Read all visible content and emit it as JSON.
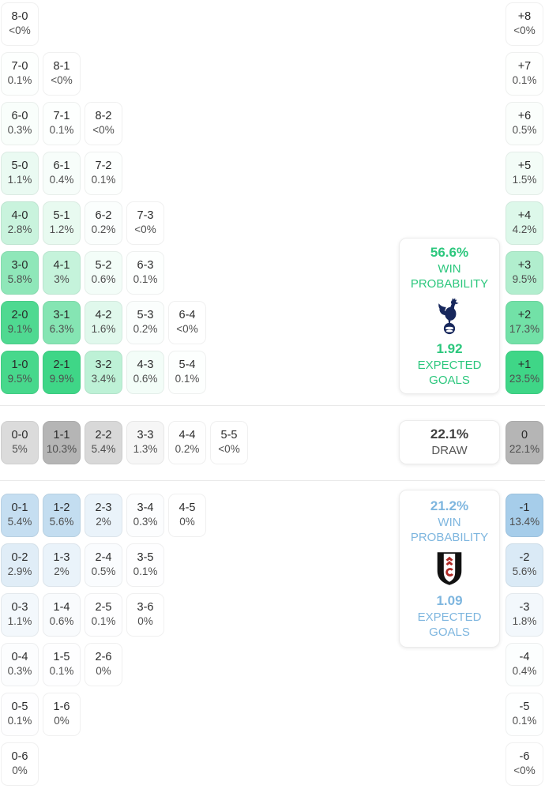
{
  "chart_data": {
    "type": "heatmap",
    "title": "Match score probability matrix with goal-difference distribution",
    "legend_position": "none",
    "home_score_grid": {
      "base_color": "#3fd687",
      "rows": [
        [
          {
            "score": "8-0",
            "pct": "<0%",
            "value": 0.02
          }
        ],
        [
          {
            "score": "7-0",
            "pct": "0.1%",
            "value": 0.1
          },
          {
            "score": "8-1",
            "pct": "<0%",
            "value": 0.02
          }
        ],
        [
          {
            "score": "6-0",
            "pct": "0.3%",
            "value": 0.3
          },
          {
            "score": "7-1",
            "pct": "0.1%",
            "value": 0.1
          },
          {
            "score": "8-2",
            "pct": "<0%",
            "value": 0.02
          }
        ],
        [
          {
            "score": "5-0",
            "pct": "1.1%",
            "value": 1.1
          },
          {
            "score": "6-1",
            "pct": "0.4%",
            "value": 0.4
          },
          {
            "score": "7-2",
            "pct": "0.1%",
            "value": 0.1
          }
        ],
        [
          {
            "score": "4-0",
            "pct": "2.8%",
            "value": 2.8
          },
          {
            "score": "5-1",
            "pct": "1.2%",
            "value": 1.2
          },
          {
            "score": "6-2",
            "pct": "0.2%",
            "value": 0.2
          },
          {
            "score": "7-3",
            "pct": "<0%",
            "value": 0.02
          }
        ],
        [
          {
            "score": "3-0",
            "pct": "5.8%",
            "value": 5.8
          },
          {
            "score": "4-1",
            "pct": "3%",
            "value": 3
          },
          {
            "score": "5-2",
            "pct": "0.6%",
            "value": 0.6
          },
          {
            "score": "6-3",
            "pct": "0.1%",
            "value": 0.1
          }
        ],
        [
          {
            "score": "2-0",
            "pct": "9.1%",
            "value": 9.1
          },
          {
            "score": "3-1",
            "pct": "6.3%",
            "value": 6.3
          },
          {
            "score": "4-2",
            "pct": "1.6%",
            "value": 1.6
          },
          {
            "score": "5-3",
            "pct": "0.2%",
            "value": 0.2
          },
          {
            "score": "6-4",
            "pct": "<0%",
            "value": 0.02
          }
        ],
        [
          {
            "score": "1-0",
            "pct": "9.5%",
            "value": 9.5
          },
          {
            "score": "2-1",
            "pct": "9.9%",
            "value": 9.9
          },
          {
            "score": "3-2",
            "pct": "3.4%",
            "value": 3.4
          },
          {
            "score": "4-3",
            "pct": "0.6%",
            "value": 0.6
          },
          {
            "score": "5-4",
            "pct": "0.1%",
            "value": 0.1
          }
        ]
      ]
    },
    "draw_score_grid": {
      "base_color": "#b5b5b5",
      "rows": [
        [
          {
            "score": "0-0",
            "pct": "5%",
            "value": 5
          },
          {
            "score": "1-1",
            "pct": "10.3%",
            "value": 10.3
          },
          {
            "score": "2-2",
            "pct": "5.4%",
            "value": 5.4
          },
          {
            "score": "3-3",
            "pct": "1.3%",
            "value": 1.3
          },
          {
            "score": "4-4",
            "pct": "0.2%",
            "value": 0.2
          },
          {
            "score": "5-5",
            "pct": "<0%",
            "value": 0.02
          }
        ]
      ]
    },
    "away_score_grid": {
      "base_color": "#c3ddf0",
      "rows": [
        [
          {
            "score": "0-1",
            "pct": "5.4%",
            "value": 5.4
          },
          {
            "score": "1-2",
            "pct": "5.6%",
            "value": 5.6
          },
          {
            "score": "2-3",
            "pct": "2%",
            "value": 2
          },
          {
            "score": "3-4",
            "pct": "0.3%",
            "value": 0.3
          },
          {
            "score": "4-5",
            "pct": "0%",
            "value": 0.01
          }
        ],
        [
          {
            "score": "0-2",
            "pct": "2.9%",
            "value": 2.9
          },
          {
            "score": "1-3",
            "pct": "2%",
            "value": 2
          },
          {
            "score": "2-4",
            "pct": "0.5%",
            "value": 0.5
          },
          {
            "score": "3-5",
            "pct": "0.1%",
            "value": 0.1
          }
        ],
        [
          {
            "score": "0-3",
            "pct": "1.1%",
            "value": 1.1
          },
          {
            "score": "1-4",
            "pct": "0.6%",
            "value": 0.6
          },
          {
            "score": "2-5",
            "pct": "0.1%",
            "value": 0.1
          },
          {
            "score": "3-6",
            "pct": "0%",
            "value": 0.01
          }
        ],
        [
          {
            "score": "0-4",
            "pct": "0.3%",
            "value": 0.3
          },
          {
            "score": "1-5",
            "pct": "0.1%",
            "value": 0.1
          },
          {
            "score": "2-6",
            "pct": "0%",
            "value": 0.01
          }
        ],
        [
          {
            "score": "0-5",
            "pct": "0.1%",
            "value": 0.1
          },
          {
            "score": "1-6",
            "pct": "0%",
            "value": 0.01
          }
        ],
        [
          {
            "score": "0-6",
            "pct": "0%",
            "value": 0.01
          }
        ]
      ]
    },
    "goal_difference_column": {
      "positive": {
        "base_color": "#3fd687",
        "cells": [
          {
            "score": "+8",
            "pct": "<0%",
            "value": 0.02
          },
          {
            "score": "+7",
            "pct": "0.1%",
            "value": 0.1
          },
          {
            "score": "+6",
            "pct": "0.5%",
            "value": 0.5
          },
          {
            "score": "+5",
            "pct": "1.5%",
            "value": 1.5
          },
          {
            "score": "+4",
            "pct": "4.2%",
            "value": 4.2
          },
          {
            "score": "+3",
            "pct": "9.5%",
            "value": 9.5
          },
          {
            "score": "+2",
            "pct": "17.3%",
            "value": 17.3
          },
          {
            "score": "+1",
            "pct": "23.5%",
            "value": 23.5
          }
        ]
      },
      "zero": {
        "base_color": "#b5b5b5",
        "cells": [
          {
            "score": "0",
            "pct": "22.1%",
            "value": 22.1
          }
        ]
      },
      "negative": {
        "base_color": "#a6cdea",
        "cells": [
          {
            "score": "-1",
            "pct": "13.4%",
            "value": 13.4
          },
          {
            "score": "-2",
            "pct": "5.6%",
            "value": 5.6
          },
          {
            "score": "-3",
            "pct": "1.8%",
            "value": 1.8
          },
          {
            "score": "-4",
            "pct": "0.4%",
            "value": 0.4
          },
          {
            "score": "-5",
            "pct": "0.1%",
            "value": 0.1
          },
          {
            "score": "-6",
            "pct": "<0%",
            "value": 0.02
          }
        ]
      }
    },
    "summary": {
      "home": {
        "probability": "56.6%",
        "probability_label": "WIN PROBABILITY",
        "expected_goals": "1.92",
        "expected_goals_label": "EXPECTED GOALS",
        "logo_icon": "tottenham-crest-icon",
        "accent_color": "#2cc77d",
        "crest_colors": {
          "primary": "#17275c",
          "secondary": "#ffffff"
        }
      },
      "draw": {
        "probability": "22.1%",
        "label": "DRAW"
      },
      "away": {
        "probability": "21.2%",
        "probability_label": "WIN PROBABILITY",
        "expected_goals": "1.09",
        "expected_goals_label": "EXPECTED GOALS",
        "logo_icon": "fulham-crest-icon",
        "accent_color": "#7eb6df",
        "crest_colors": {
          "primary": "#111111",
          "secondary": "#ffffff",
          "monogram": "#b02a26"
        }
      }
    }
  }
}
